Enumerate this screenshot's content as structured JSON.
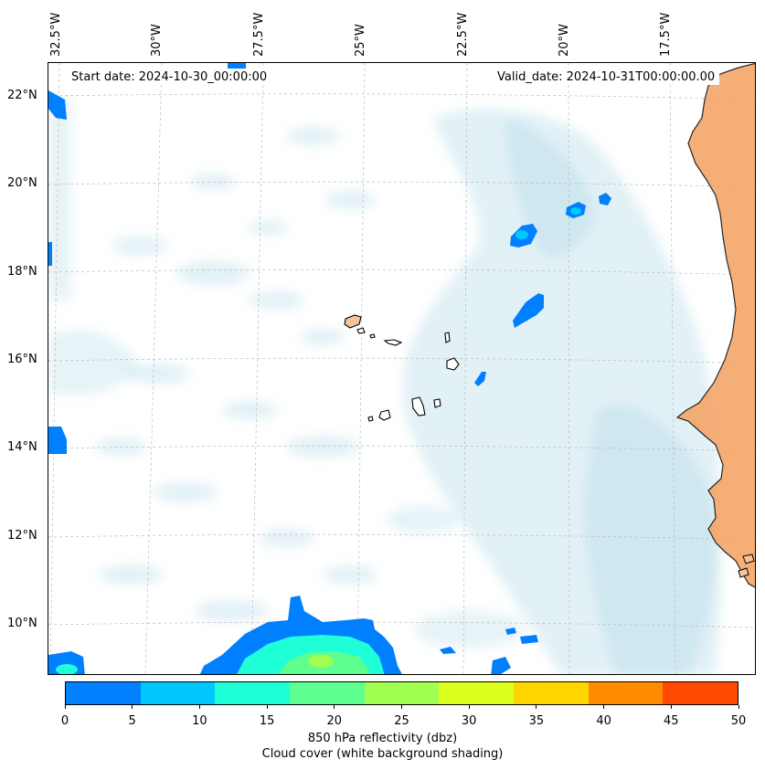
{
  "map": {
    "start_date": "Start date: 2024-10-30_00:00:00",
    "valid_date": "Valid_date: 2024-10-31T00:00:00.00",
    "lon_ticks": [
      "32.5°W",
      "30°W",
      "27.5°W",
      "25°W",
      "22.5°W",
      "20°W",
      "17.5°W"
    ],
    "lat_ticks": [
      "22°N",
      "20°N",
      "18°N",
      "16°N",
      "14°N",
      "12°N",
      "10°N"
    ],
    "land_color": "#f5a060",
    "cloud_color": "#add8e6"
  },
  "colorbar": {
    "ticks": [
      "0",
      "5",
      "10",
      "15",
      "20",
      "25",
      "30",
      "35",
      "40",
      "45",
      "50"
    ],
    "colors": [
      "#0080ff",
      "#00c8ff",
      "#1effd8",
      "#5eff8e",
      "#a0ff50",
      "#dcff1e",
      "#ffd600",
      "#ff8c00",
      "#ff4800"
    ],
    "title": "850 hPa reflectivity (dbz)",
    "subtitle": "Cloud cover (white background shading)"
  }
}
